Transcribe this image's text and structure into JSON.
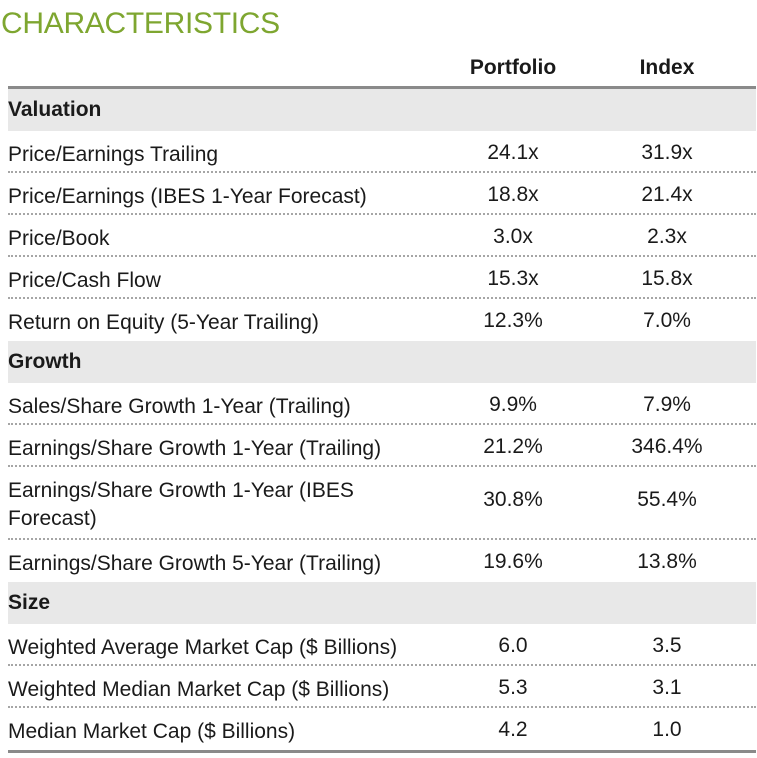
{
  "title": "CHARACTERISTICS",
  "columns": {
    "portfolio": "Portfolio",
    "index": "Index"
  },
  "sections": [
    {
      "name": "Valuation",
      "rows": [
        {
          "label": "Price/Earnings Trailing",
          "portfolio": "24.1x",
          "index": "31.9x"
        },
        {
          "label": "Price/Earnings (IBES 1-Year Forecast)",
          "portfolio": "18.8x",
          "index": "21.4x"
        },
        {
          "label": "Price/Book",
          "portfolio": "3.0x",
          "index": "2.3x"
        },
        {
          "label": "Price/Cash Flow",
          "portfolio": "15.3x",
          "index": "15.8x"
        },
        {
          "label": "Return on Equity (5-Year Trailing)",
          "portfolio": "12.3%",
          "index": "7.0%"
        }
      ]
    },
    {
      "name": "Growth",
      "rows": [
        {
          "label": "Sales/Share Growth 1-Year (Trailing)",
          "portfolio": "9.9%",
          "index": "7.9%"
        },
        {
          "label": "Earnings/Share Growth 1-Year (Trailing)",
          "portfolio": "21.2%",
          "index": "346.4%"
        },
        {
          "label": "Earnings/Share Growth 1-Year (IBES Forecast)",
          "portfolio": "30.8%",
          "index": "55.4%"
        },
        {
          "label": "Earnings/Share Growth 5-Year (Trailing)",
          "portfolio": "19.6%",
          "index": "13.8%"
        }
      ]
    },
    {
      "name": "Size",
      "rows": [
        {
          "label": "Weighted Average Market Cap ($ Billions)",
          "portfolio": "6.0",
          "index": "3.5"
        },
        {
          "label": "Weighted Median Market Cap ($ Billions)",
          "portfolio": "5.3",
          "index": "3.1"
        },
        {
          "label": "Median Market Cap ($ Billions)",
          "portfolio": "4.2",
          "index": "1.0"
        }
      ]
    }
  ],
  "colors": {
    "title": "#7ea630",
    "section_bg": "#e8e8e8",
    "rule": "#8a8a8a"
  }
}
